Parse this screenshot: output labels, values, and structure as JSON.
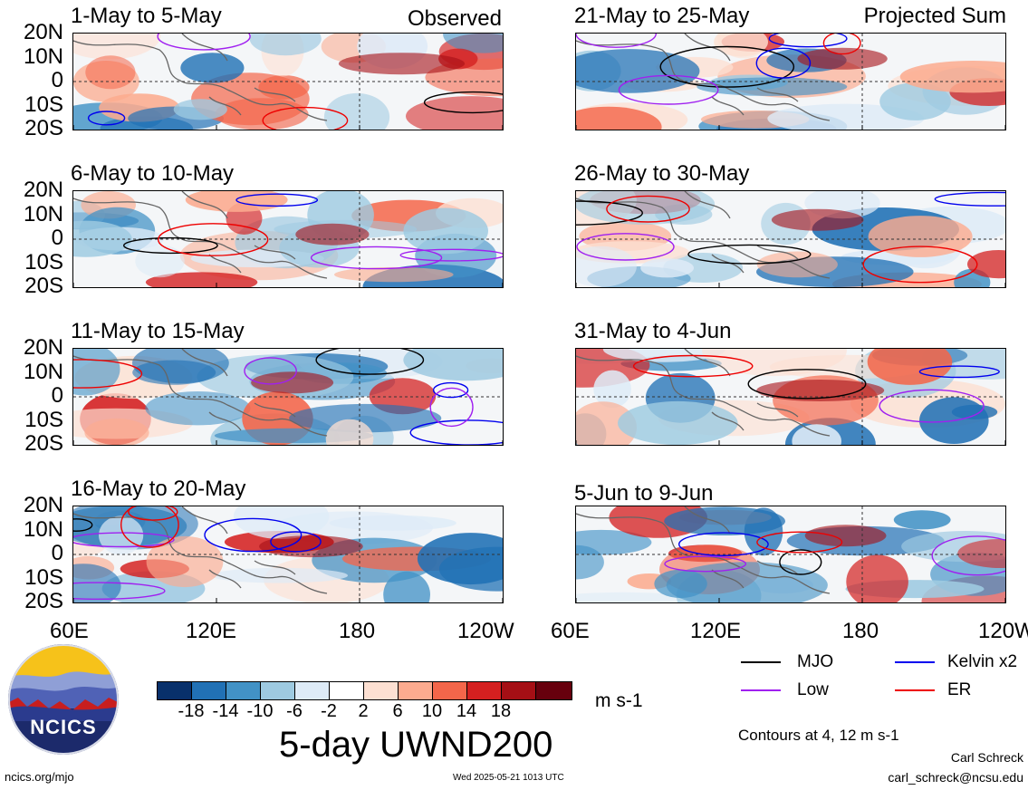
{
  "panels": [
    {
      "title": "1-May to 5-May",
      "tag": "Observed"
    },
    {
      "title": "21-May to 25-May",
      "tag": "Projected Sum"
    },
    {
      "title": "6-May to 10-May",
      "tag": ""
    },
    {
      "title": "26-May to 30-May",
      "tag": ""
    },
    {
      "title": "11-May to 15-May",
      "tag": ""
    },
    {
      "title": "31-May to 4-Jun",
      "tag": ""
    },
    {
      "title": "16-May to 20-May",
      "tag": ""
    },
    {
      "title": "5-Jun to 9-Jun",
      "tag": ""
    }
  ],
  "lat_labels": [
    "20N",
    "10N",
    "0",
    "10S",
    "20S"
  ],
  "lon_labels": [
    "60E",
    "120E",
    "180",
    "120W"
  ],
  "colorbar": {
    "colors": [
      "#08306b",
      "#2171b5",
      "#4292c6",
      "#9ecae1",
      "#deebf7",
      "#ffffff",
      "#fde0d2",
      "#fcab8f",
      "#f4664a",
      "#d42020",
      "#a50f15",
      "#67000d"
    ],
    "labels": [
      "-18",
      "-14",
      "-10",
      "-6",
      "-2",
      "2",
      "6",
      "10",
      "14",
      "18"
    ],
    "unit": "m s-1",
    "title": "5-day UWND200"
  },
  "legend": {
    "items": [
      {
        "label": "MJO",
        "color": "#000000"
      },
      {
        "label": "Kelvin x2",
        "color": "#0000ee"
      },
      {
        "label": "Low",
        "color": "#a020f0"
      },
      {
        "label": "ER",
        "color": "#ee0000"
      }
    ],
    "contours_note": "Contours at 4, 12 m s-1"
  },
  "logo": {
    "text": "NCICS"
  },
  "footer": {
    "url": "ncics.org/mjo",
    "timestamp": "Wed 2025-05-21 1013 UTC",
    "author": "Carl Schreck",
    "email": "carl_schreck@ncsu.edu"
  }
}
